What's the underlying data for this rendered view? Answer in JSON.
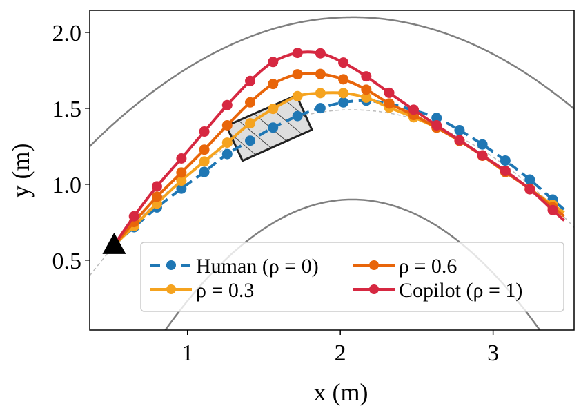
{
  "chart_data": {
    "type": "line",
    "title": "",
    "xlabel": "x (m)",
    "ylabel": "y (m)",
    "xlim": [
      0.36,
      3.53
    ],
    "ylim": [
      0.04,
      2.145
    ],
    "xticks": [
      1,
      2,
      3
    ],
    "xtick_labels": [
      "1",
      "2",
      "3"
    ],
    "yticks": [
      0.5,
      1.0,
      1.5,
      2.0
    ],
    "ytick_labels": [
      "0.5",
      "1.0",
      "1.5",
      "2.0"
    ],
    "grid": false,
    "legend_placement": "lower-right",
    "start_marker": {
      "shape": "triangle",
      "x": 0.52,
      "y": 0.6,
      "color": "#000000"
    },
    "x": [
      0.65,
      0.8,
      0.96,
      1.11,
      1.26,
      1.41,
      1.56,
      1.72,
      1.87,
      2.02,
      2.17,
      2.32,
      2.48,
      2.63,
      2.78,
      2.93,
      3.08,
      3.24,
      3.39
    ],
    "series": [
      {
        "name": "Human (ρ = 0)",
        "legend_label": "Human (ρ = 0)",
        "color": "#1f77b4",
        "style": "dashed",
        "values": [
          0.717,
          0.847,
          0.971,
          1.081,
          1.199,
          1.287,
          1.373,
          1.449,
          1.501,
          1.539,
          1.55,
          1.53,
          1.487,
          1.437,
          1.356,
          1.262,
          1.156,
          1.031,
          0.899
        ]
      },
      {
        "name": "ρ = 0.3",
        "legend_label": "ρ = 0.3",
        "color": "#f5a31f",
        "style": "solid",
        "values": [
          0.724,
          0.873,
          1.024,
          1.15,
          1.274,
          1.401,
          1.496,
          1.58,
          1.6,
          1.6,
          1.57,
          1.505,
          1.441,
          1.373,
          1.286,
          1.188,
          1.088,
          0.967,
          0.865
        ]
      },
      {
        "name": "ρ = 0.6",
        "legend_label": "ρ = 0.6",
        "color": "#e8650a",
        "style": "solid",
        "values": [
          0.751,
          0.918,
          1.077,
          1.228,
          1.388,
          1.539,
          1.66,
          1.724,
          1.726,
          1.691,
          1.623,
          1.532,
          1.456,
          1.373,
          1.286,
          1.188,
          1.08,
          0.971,
          0.85
        ]
      },
      {
        "name": "Copilot (ρ = 1)",
        "legend_label": "Copilot (ρ = 1)",
        "color": "#d62841",
        "style": "solid",
        "values": [
          0.789,
          0.986,
          1.17,
          1.347,
          1.521,
          1.68,
          1.805,
          1.865,
          1.862,
          1.801,
          1.71,
          1.602,
          1.491,
          1.388,
          1.29,
          1.19,
          1.088,
          0.967,
          0.83
        ]
      }
    ],
    "boundaries": {
      "x": [
        0.25,
        0.5,
        0.75,
        1.0,
        1.25,
        1.5,
        1.75,
        2.0,
        2.25,
        2.5,
        2.75,
        3.0,
        3.25,
        3.5,
        3.75
      ],
      "outer": {
        "color": "#7f7f7f",
        "values": [
          1.139,
          1.384,
          1.592,
          1.765,
          1.902,
          2.004,
          2.069,
          2.098,
          2.092,
          2.049,
          1.971,
          1.857,
          1.707,
          1.521,
          1.3
        ]
      },
      "inner": {
        "color": "#7f7f7f",
        "values": [
          -1.02,
          -0.53,
          -0.114,
          0.232,
          0.505,
          0.707,
          0.838,
          0.896,
          0.883,
          0.799,
          0.643,
          0.415,
          0.116,
          -0.255,
          -0.698
        ]
      },
      "reference": {
        "color": "#bbbbbb",
        "style": "dashed",
        "values": [
          0.258,
          0.571,
          0.839,
          1.061,
          1.236,
          1.366,
          1.45,
          1.488,
          1.479,
          1.425,
          1.325,
          1.179,
          0.986,
          0.748,
          0.464
        ]
      }
    },
    "obstacle": {
      "fill": "#d9d9d9",
      "hatch": "diagonal",
      "corners": [
        [
          1.254,
          1.384
        ],
        [
          1.713,
          1.586
        ],
        [
          1.814,
          1.359
        ],
        [
          1.36,
          1.155
        ]
      ]
    }
  }
}
